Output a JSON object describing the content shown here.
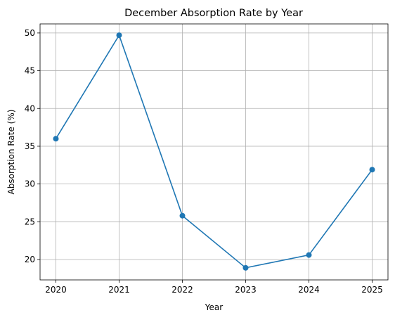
{
  "chart_data": {
    "type": "line",
    "title": "December Absorption Rate by Year",
    "xlabel": "Year",
    "ylabel": "Absorption Rate (%)",
    "x": [
      "2020",
      "2021",
      "2022",
      "2023",
      "2024",
      "2025"
    ],
    "series": [
      {
        "values": [
          36.0,
          49.7,
          25.8,
          18.9,
          20.6,
          31.9
        ],
        "color": "#1f77b4",
        "marker": "circle"
      }
    ],
    "yticks": [
      20,
      25,
      30,
      35,
      40,
      45,
      50
    ],
    "ylim": [
      17.3,
      51.2
    ],
    "grid": true
  }
}
